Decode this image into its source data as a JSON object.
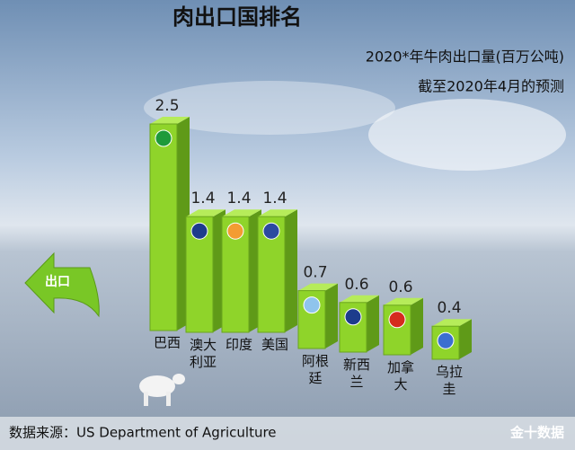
{
  "chart_data": {
    "type": "bar",
    "title": "肉出口国排名",
    "subtitle": "2020*年牛肉出口量(百万公吨)",
    "note": "截至2020年4月的预测",
    "arrow_label": "出口",
    "source": "数据来源：US Department of Agriculture",
    "watermark": "金十数据",
    "categories": [
      "巴西",
      "澳大利亚",
      "印度",
      "美国",
      "阿根廷",
      "新西兰",
      "加拿大",
      "乌拉圭"
    ],
    "values": [
      2.5,
      1.4,
      1.4,
      1.4,
      0.7,
      0.6,
      0.6,
      0.4
    ],
    "color": "#8fd42a"
  }
}
